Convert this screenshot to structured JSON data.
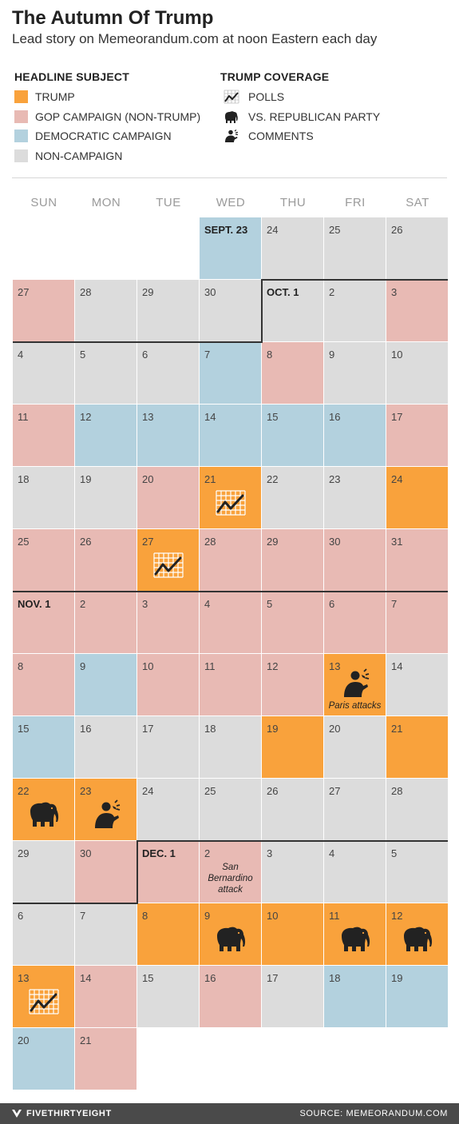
{
  "title": "The Autumn Of Trump",
  "subtitle": "Lead story on Memeorandum.com at noon Eastern each day",
  "legend": {
    "subject_heading": "HEADLINE SUBJECT",
    "coverage_heading": "TRUMP COVERAGE",
    "subjects": [
      {
        "key": "T",
        "label": "TRUMP",
        "color": "#f9a23c"
      },
      {
        "key": "G",
        "label": "GOP CAMPAIGN (NON-TRUMP)",
        "color": "#e8bab4"
      },
      {
        "key": "D",
        "label": "DEMOCRATIC CAMPAIGN",
        "color": "#b3d1de"
      },
      {
        "key": "N",
        "label": "NON-CAMPAIGN",
        "color": "#dcdcdc"
      }
    ],
    "coverage": [
      {
        "key": "polls",
        "label": "POLLS",
        "icon": "polls-icon"
      },
      {
        "key": "gop",
        "label": "VS. REPUBLICAN PARTY",
        "icon": "elephant-icon"
      },
      {
        "key": "comments",
        "label": "COMMENTS",
        "icon": "speaker-icon"
      }
    ]
  },
  "weekdays": [
    "SUN",
    "MON",
    "TUE",
    "WED",
    "THU",
    "FRI",
    "SAT"
  ],
  "chart_data": {
    "type": "table",
    "title": "The Autumn Of Trump",
    "subtitle": "Lead story on Memeorandum.com at noon Eastern each day",
    "first_weekday_index": 3,
    "days": [
      {
        "label": "SEPT. 23",
        "s": "D"
      },
      {
        "label": "24",
        "s": "N"
      },
      {
        "label": "25",
        "s": "N"
      },
      {
        "label": "26",
        "s": "N"
      },
      {
        "label": "27",
        "s": "G"
      },
      {
        "label": "28",
        "s": "N"
      },
      {
        "label": "29",
        "s": "N"
      },
      {
        "label": "30",
        "s": "N"
      },
      {
        "label": "OCT. 1",
        "s": "N"
      },
      {
        "label": "2",
        "s": "N"
      },
      {
        "label": "3",
        "s": "G"
      },
      {
        "label": "4",
        "s": "N"
      },
      {
        "label": "5",
        "s": "N"
      },
      {
        "label": "6",
        "s": "N"
      },
      {
        "label": "7",
        "s": "D"
      },
      {
        "label": "8",
        "s": "G"
      },
      {
        "label": "9",
        "s": "N"
      },
      {
        "label": "10",
        "s": "N"
      },
      {
        "label": "11",
        "s": "G"
      },
      {
        "label": "12",
        "s": "D"
      },
      {
        "label": "13",
        "s": "D"
      },
      {
        "label": "14",
        "s": "D"
      },
      {
        "label": "15",
        "s": "D"
      },
      {
        "label": "16",
        "s": "D"
      },
      {
        "label": "17",
        "s": "G"
      },
      {
        "label": "18",
        "s": "N"
      },
      {
        "label": "19",
        "s": "N"
      },
      {
        "label": "20",
        "s": "G"
      },
      {
        "label": "21",
        "s": "T",
        "c": "polls"
      },
      {
        "label": "22",
        "s": "N"
      },
      {
        "label": "23",
        "s": "N"
      },
      {
        "label": "24",
        "s": "T"
      },
      {
        "label": "25",
        "s": "G"
      },
      {
        "label": "26",
        "s": "G"
      },
      {
        "label": "27",
        "s": "T",
        "c": "polls"
      },
      {
        "label": "28",
        "s": "G"
      },
      {
        "label": "29",
        "s": "G"
      },
      {
        "label": "30",
        "s": "G"
      },
      {
        "label": "31",
        "s": "G"
      },
      {
        "label": "NOV. 1",
        "s": "G"
      },
      {
        "label": "2",
        "s": "G"
      },
      {
        "label": "3",
        "s": "G"
      },
      {
        "label": "4",
        "s": "G"
      },
      {
        "label": "5",
        "s": "G"
      },
      {
        "label": "6",
        "s": "G"
      },
      {
        "label": "7",
        "s": "G"
      },
      {
        "label": "8",
        "s": "G"
      },
      {
        "label": "9",
        "s": "D"
      },
      {
        "label": "10",
        "s": "G"
      },
      {
        "label": "11",
        "s": "G"
      },
      {
        "label": "12",
        "s": "G"
      },
      {
        "label": "13",
        "s": "T",
        "c": "comments",
        "note": "Paris attacks"
      },
      {
        "label": "14",
        "s": "N"
      },
      {
        "label": "15",
        "s": "D"
      },
      {
        "label": "16",
        "s": "N"
      },
      {
        "label": "17",
        "s": "N"
      },
      {
        "label": "18",
        "s": "N"
      },
      {
        "label": "19",
        "s": "T"
      },
      {
        "label": "20",
        "s": "N"
      },
      {
        "label": "21",
        "s": "T"
      },
      {
        "label": "22",
        "s": "T",
        "c": "gop"
      },
      {
        "label": "23",
        "s": "T",
        "c": "comments"
      },
      {
        "label": "24",
        "s": "N"
      },
      {
        "label": "25",
        "s": "N"
      },
      {
        "label": "26",
        "s": "N"
      },
      {
        "label": "27",
        "s": "N"
      },
      {
        "label": "28",
        "s": "N"
      },
      {
        "label": "29",
        "s": "N"
      },
      {
        "label": "30",
        "s": "G"
      },
      {
        "label": "DEC. 1",
        "s": "G"
      },
      {
        "label": "2",
        "s": "G",
        "note": "San Bernardino attack"
      },
      {
        "label": "3",
        "s": "N"
      },
      {
        "label": "4",
        "s": "N"
      },
      {
        "label": "5",
        "s": "N"
      },
      {
        "label": "6",
        "s": "N"
      },
      {
        "label": "7",
        "s": "N"
      },
      {
        "label": "8",
        "s": "T"
      },
      {
        "label": "9",
        "s": "T",
        "c": "gop"
      },
      {
        "label": "10",
        "s": "T"
      },
      {
        "label": "11",
        "s": "T",
        "c": "gop"
      },
      {
        "label": "12",
        "s": "T",
        "c": "gop"
      },
      {
        "label": "13",
        "s": "T",
        "c": "polls"
      },
      {
        "label": "14",
        "s": "G"
      },
      {
        "label": "15",
        "s": "N"
      },
      {
        "label": "16",
        "s": "G"
      },
      {
        "label": "17",
        "s": "N"
      },
      {
        "label": "18",
        "s": "D"
      },
      {
        "label": "19",
        "s": "D"
      },
      {
        "label": "20",
        "s": "D"
      },
      {
        "label": "21",
        "s": "G"
      }
    ]
  },
  "footer": {
    "brand": "FIVETHIRTYEIGHT",
    "source": "SOURCE: MEMEORANDUM.COM"
  }
}
